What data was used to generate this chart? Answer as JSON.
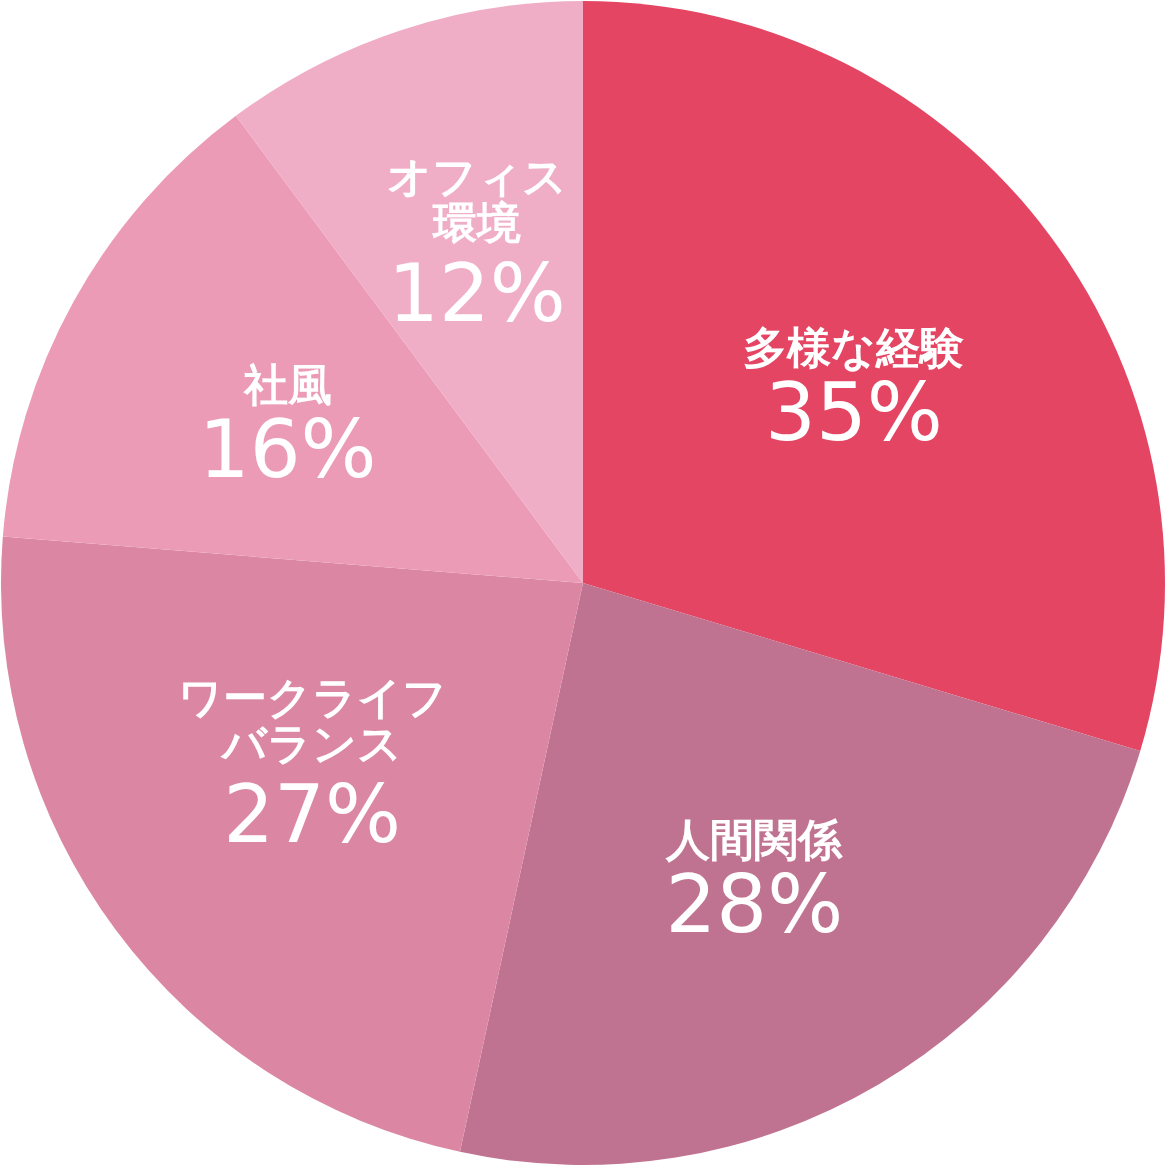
{
  "chart_data": {
    "type": "pie",
    "categories": [
      "多様な経験",
      "人間関係",
      "ワークライフバランス",
      "社風",
      "オフィス環境"
    ],
    "values": [
      35,
      28,
      27,
      16,
      12
    ],
    "colors": [
      "#e34563",
      "#c07390",
      "#db87a3",
      "#ec9bb6",
      "#f0aec6"
    ],
    "value_labels": [
      "35%",
      "28%",
      "27%",
      "16%",
      "12%"
    ]
  }
}
